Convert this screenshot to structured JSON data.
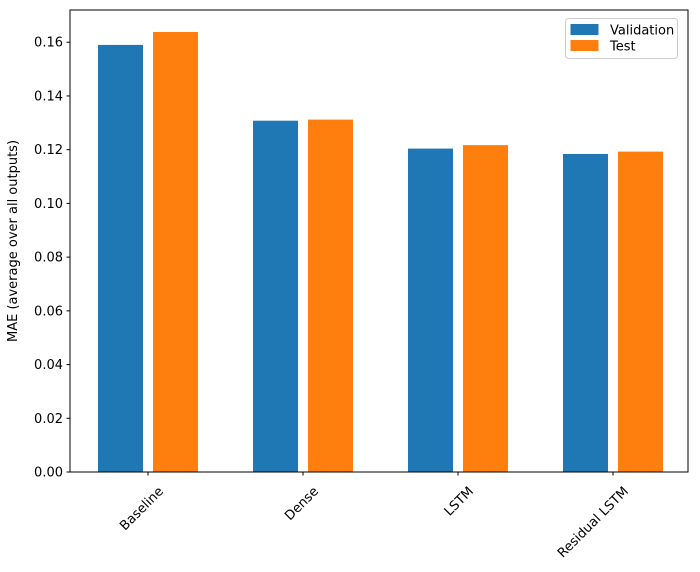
{
  "figure": {
    "background": "#ffffff",
    "axis_color": "#000000",
    "tick_label_color": "#000000",
    "legend_border_color": "#cccccc"
  },
  "chart_data": {
    "type": "bar",
    "title": "",
    "xlabel": "",
    "ylabel": "MAE (average over all outputs)",
    "categories": [
      "Baseline",
      "Dense",
      "LSTM",
      "Residual LSTM"
    ],
    "series": [
      {
        "name": "Validation",
        "color": "#1f77b4",
        "values": [
          0.159,
          0.1308,
          0.1204,
          0.1184
        ]
      },
      {
        "name": "Test",
        "color": "#ff7f0e",
        "values": [
          0.1638,
          0.1312,
          0.1217,
          0.1193
        ]
      }
    ],
    "ylim": [
      0,
      0.172
    ],
    "yticks": [
      0.0,
      0.02,
      0.04,
      0.06,
      0.08,
      0.1,
      0.12,
      0.14,
      0.16
    ],
    "ytick_decimals": 2,
    "grid": false,
    "xtick_rotation_deg": 45,
    "legend": {
      "position": "upper right",
      "entries": [
        "Validation",
        "Test"
      ]
    }
  }
}
